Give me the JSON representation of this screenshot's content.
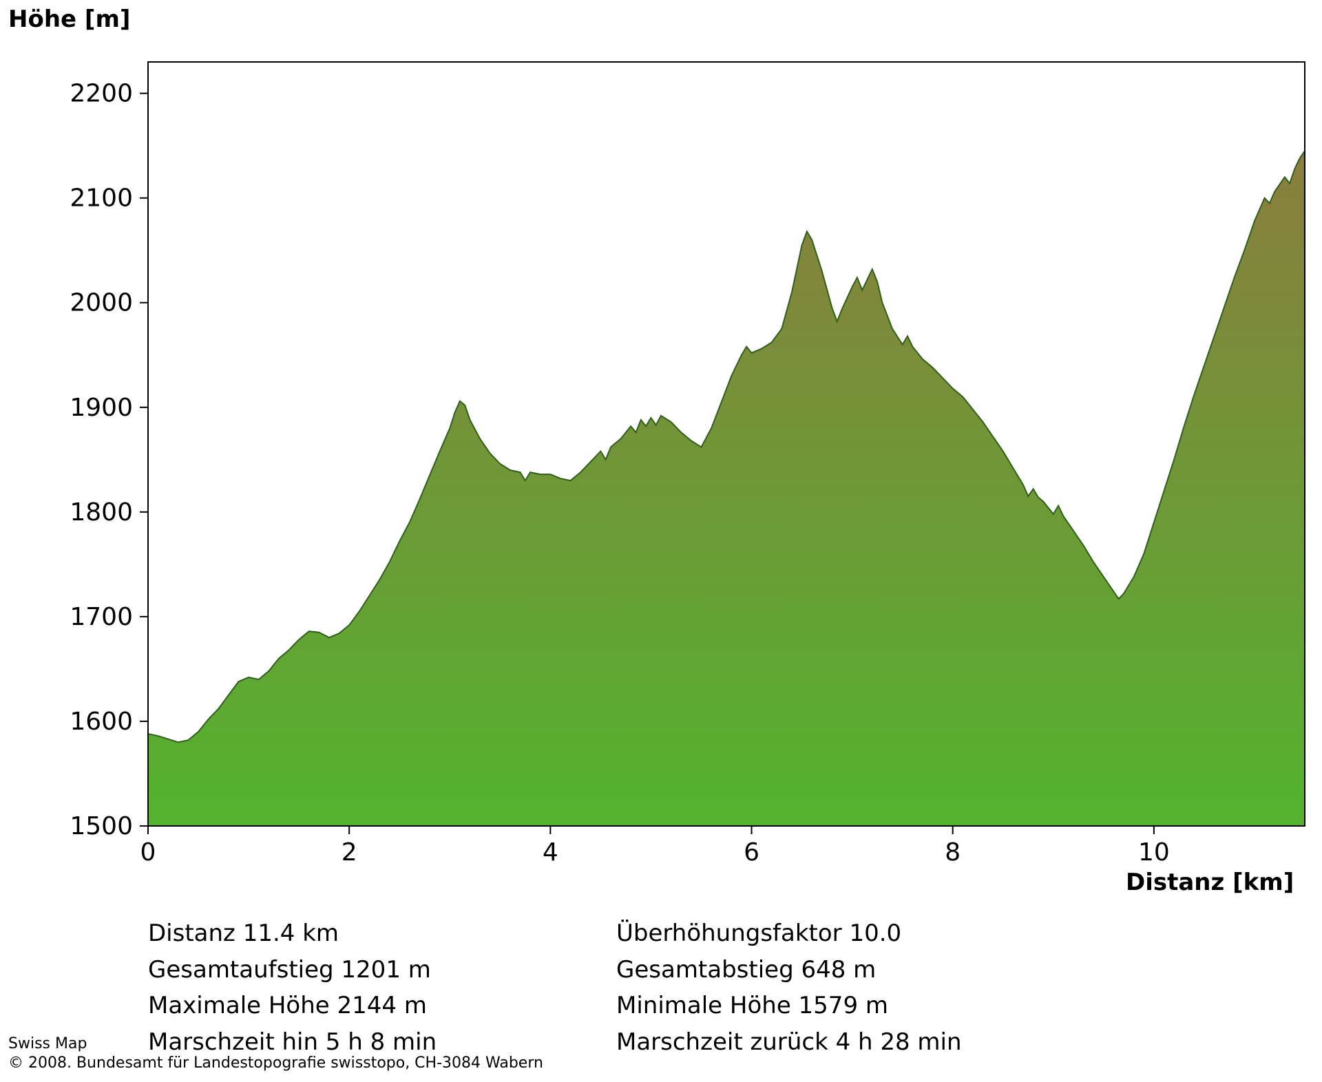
{
  "title": "Höhe [m]",
  "xaxis_label": "Distanz  [km]",
  "chart": {
    "type": "area",
    "xlim": [
      0,
      11.5
    ],
    "ylim": [
      1500,
      2230
    ],
    "xticks": [
      0,
      2,
      4,
      6,
      8,
      10
    ],
    "yticks": [
      1500,
      1600,
      1700,
      1800,
      1900,
      2000,
      2100,
      2200
    ],
    "tick_fontsize": 36,
    "stroke_color": "#2f5f1a",
    "stroke_width": 2,
    "gradient_top": "#8a7d3e",
    "gradient_bottom": "#53b32f",
    "background_color": "#ffffff",
    "border_color": "#000000",
    "data": [
      [
        0.0,
        1588
      ],
      [
        0.1,
        1586
      ],
      [
        0.2,
        1583
      ],
      [
        0.3,
        1580
      ],
      [
        0.4,
        1582
      ],
      [
        0.5,
        1590
      ],
      [
        0.6,
        1602
      ],
      [
        0.7,
        1612
      ],
      [
        0.8,
        1625
      ],
      [
        0.9,
        1638
      ],
      [
        1.0,
        1642
      ],
      [
        1.1,
        1640
      ],
      [
        1.2,
        1648
      ],
      [
        1.3,
        1660
      ],
      [
        1.4,
        1668
      ],
      [
        1.5,
        1678
      ],
      [
        1.6,
        1686
      ],
      [
        1.7,
        1685
      ],
      [
        1.8,
        1680
      ],
      [
        1.9,
        1684
      ],
      [
        2.0,
        1692
      ],
      [
        2.1,
        1705
      ],
      [
        2.2,
        1720
      ],
      [
        2.3,
        1735
      ],
      [
        2.4,
        1752
      ],
      [
        2.5,
        1772
      ],
      [
        2.6,
        1790
      ],
      [
        2.7,
        1812
      ],
      [
        2.8,
        1835
      ],
      [
        2.9,
        1858
      ],
      [
        3.0,
        1880
      ],
      [
        3.05,
        1895
      ],
      [
        3.1,
        1906
      ],
      [
        3.15,
        1902
      ],
      [
        3.2,
        1888
      ],
      [
        3.3,
        1870
      ],
      [
        3.4,
        1856
      ],
      [
        3.5,
        1846
      ],
      [
        3.6,
        1840
      ],
      [
        3.7,
        1838
      ],
      [
        3.75,
        1830
      ],
      [
        3.8,
        1838
      ],
      [
        3.9,
        1836
      ],
      [
        4.0,
        1836
      ],
      [
        4.1,
        1832
      ],
      [
        4.2,
        1830
      ],
      [
        4.3,
        1838
      ],
      [
        4.4,
        1848
      ],
      [
        4.5,
        1858
      ],
      [
        4.55,
        1850
      ],
      [
        4.6,
        1862
      ],
      [
        4.7,
        1870
      ],
      [
        4.8,
        1882
      ],
      [
        4.85,
        1876
      ],
      [
        4.9,
        1888
      ],
      [
        4.95,
        1882
      ],
      [
        5.0,
        1890
      ],
      [
        5.05,
        1883
      ],
      [
        5.1,
        1892
      ],
      [
        5.2,
        1886
      ],
      [
        5.3,
        1876
      ],
      [
        5.4,
        1868
      ],
      [
        5.5,
        1862
      ],
      [
        5.6,
        1880
      ],
      [
        5.7,
        1905
      ],
      [
        5.8,
        1930
      ],
      [
        5.9,
        1950
      ],
      [
        5.95,
        1958
      ],
      [
        6.0,
        1952
      ],
      [
        6.1,
        1956
      ],
      [
        6.2,
        1962
      ],
      [
        6.3,
        1975
      ],
      [
        6.4,
        2010
      ],
      [
        6.5,
        2055
      ],
      [
        6.55,
        2068
      ],
      [
        6.6,
        2060
      ],
      [
        6.7,
        2030
      ],
      [
        6.8,
        1995
      ],
      [
        6.85,
        1982
      ],
      [
        6.9,
        1994
      ],
      [
        7.0,
        2015
      ],
      [
        7.05,
        2024
      ],
      [
        7.1,
        2012
      ],
      [
        7.15,
        2022
      ],
      [
        7.2,
        2032
      ],
      [
        7.25,
        2020
      ],
      [
        7.3,
        2000
      ],
      [
        7.4,
        1975
      ],
      [
        7.5,
        1960
      ],
      [
        7.55,
        1968
      ],
      [
        7.6,
        1958
      ],
      [
        7.7,
        1946
      ],
      [
        7.8,
        1938
      ],
      [
        7.9,
        1928
      ],
      [
        8.0,
        1918
      ],
      [
        8.1,
        1910
      ],
      [
        8.2,
        1898
      ],
      [
        8.3,
        1886
      ],
      [
        8.4,
        1872
      ],
      [
        8.5,
        1858
      ],
      [
        8.6,
        1842
      ],
      [
        8.7,
        1826
      ],
      [
        8.75,
        1815
      ],
      [
        8.8,
        1822
      ],
      [
        8.85,
        1814
      ],
      [
        8.9,
        1810
      ],
      [
        9.0,
        1798
      ],
      [
        9.05,
        1806
      ],
      [
        9.1,
        1796
      ],
      [
        9.2,
        1782
      ],
      [
        9.3,
        1768
      ],
      [
        9.4,
        1752
      ],
      [
        9.5,
        1738
      ],
      [
        9.6,
        1724
      ],
      [
        9.65,
        1717
      ],
      [
        9.7,
        1722
      ],
      [
        9.8,
        1738
      ],
      [
        9.9,
        1760
      ],
      [
        10.0,
        1790
      ],
      [
        10.1,
        1820
      ],
      [
        10.2,
        1850
      ],
      [
        10.3,
        1882
      ],
      [
        10.4,
        1912
      ],
      [
        10.5,
        1940
      ],
      [
        10.6,
        1968
      ],
      [
        10.7,
        1996
      ],
      [
        10.8,
        2024
      ],
      [
        10.9,
        2050
      ],
      [
        11.0,
        2078
      ],
      [
        11.1,
        2100
      ],
      [
        11.15,
        2095
      ],
      [
        11.2,
        2106
      ],
      [
        11.3,
        2120
      ],
      [
        11.35,
        2114
      ],
      [
        11.4,
        2128
      ],
      [
        11.45,
        2138
      ],
      [
        11.5,
        2145
      ]
    ]
  },
  "stats": {
    "rows": [
      {
        "left": "Distanz 11.4 km",
        "right": "Überhöhungsfaktor 10.0"
      },
      {
        "left": "Gesamtaufstieg  1201 m",
        "right": "Gesamtabstieg  648 m"
      },
      {
        "left": "Maximale Höhe  2144 m",
        "right": "Minimale Höhe  1579 m"
      },
      {
        "left": "Marschzeit hin  5 h 8 min",
        "right": "Marschzeit zurück  4 h 28 min"
      }
    ]
  },
  "footer_line1": "Swiss Map",
  "footer_line2": "© 2008. Bundesamt für Landestopografie swisstopo, CH-3084 Wabern"
}
